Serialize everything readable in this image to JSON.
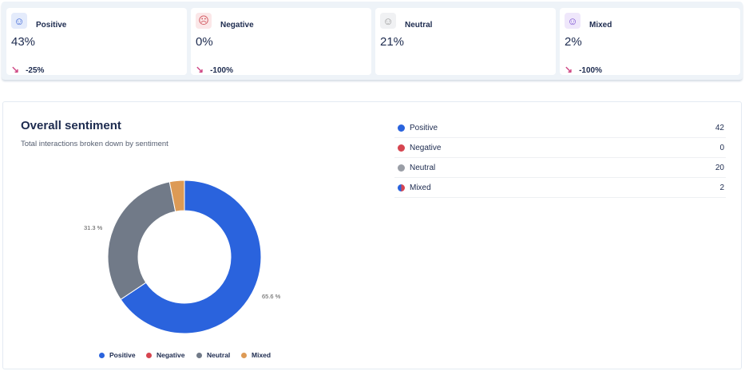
{
  "cards": [
    {
      "label": "Positive",
      "value": "43%",
      "change": "-25%",
      "icon": "smile-icon",
      "icon_bg": "#e4ebfb",
      "icon_color": "#3a63d6"
    },
    {
      "label": "Negative",
      "value": "0%",
      "change": "-100%",
      "icon": "frown-icon",
      "icon_bg": "#fbe7e8",
      "icon_color": "#d0545c"
    },
    {
      "label": "Neutral",
      "value": "21%",
      "change": null,
      "icon": "neutral-face-icon",
      "icon_bg": "#f0f1f3",
      "icon_color": "#999"
    },
    {
      "label": "Mixed",
      "value": "2%",
      "change": "-100%",
      "icon": "mixed-face-icon",
      "icon_bg": "#efe7fb",
      "icon_color": "#7a4fd1"
    }
  ],
  "panel": {
    "title": "Overall sentiment",
    "subtitle": "Total interactions broken down by sentiment"
  },
  "chart_data": {
    "type": "pie",
    "donut": true,
    "categories": [
      "Positive",
      "Negative",
      "Neutral",
      "Mixed"
    ],
    "values": [
      42,
      0,
      20,
      2
    ],
    "data_labels": [
      "65.6 %",
      "",
      "31.3 %",
      ""
    ],
    "colors": [
      "#2a63dd",
      "#d64550",
      "#717a88",
      "#dd9a55"
    ],
    "legend": "bottom"
  },
  "table": [
    {
      "label": "Positive",
      "count": "42"
    },
    {
      "label": "Negative",
      "count": "0"
    },
    {
      "label": "Neutral",
      "count": "20"
    },
    {
      "label": "Mixed",
      "count": "2"
    }
  ]
}
